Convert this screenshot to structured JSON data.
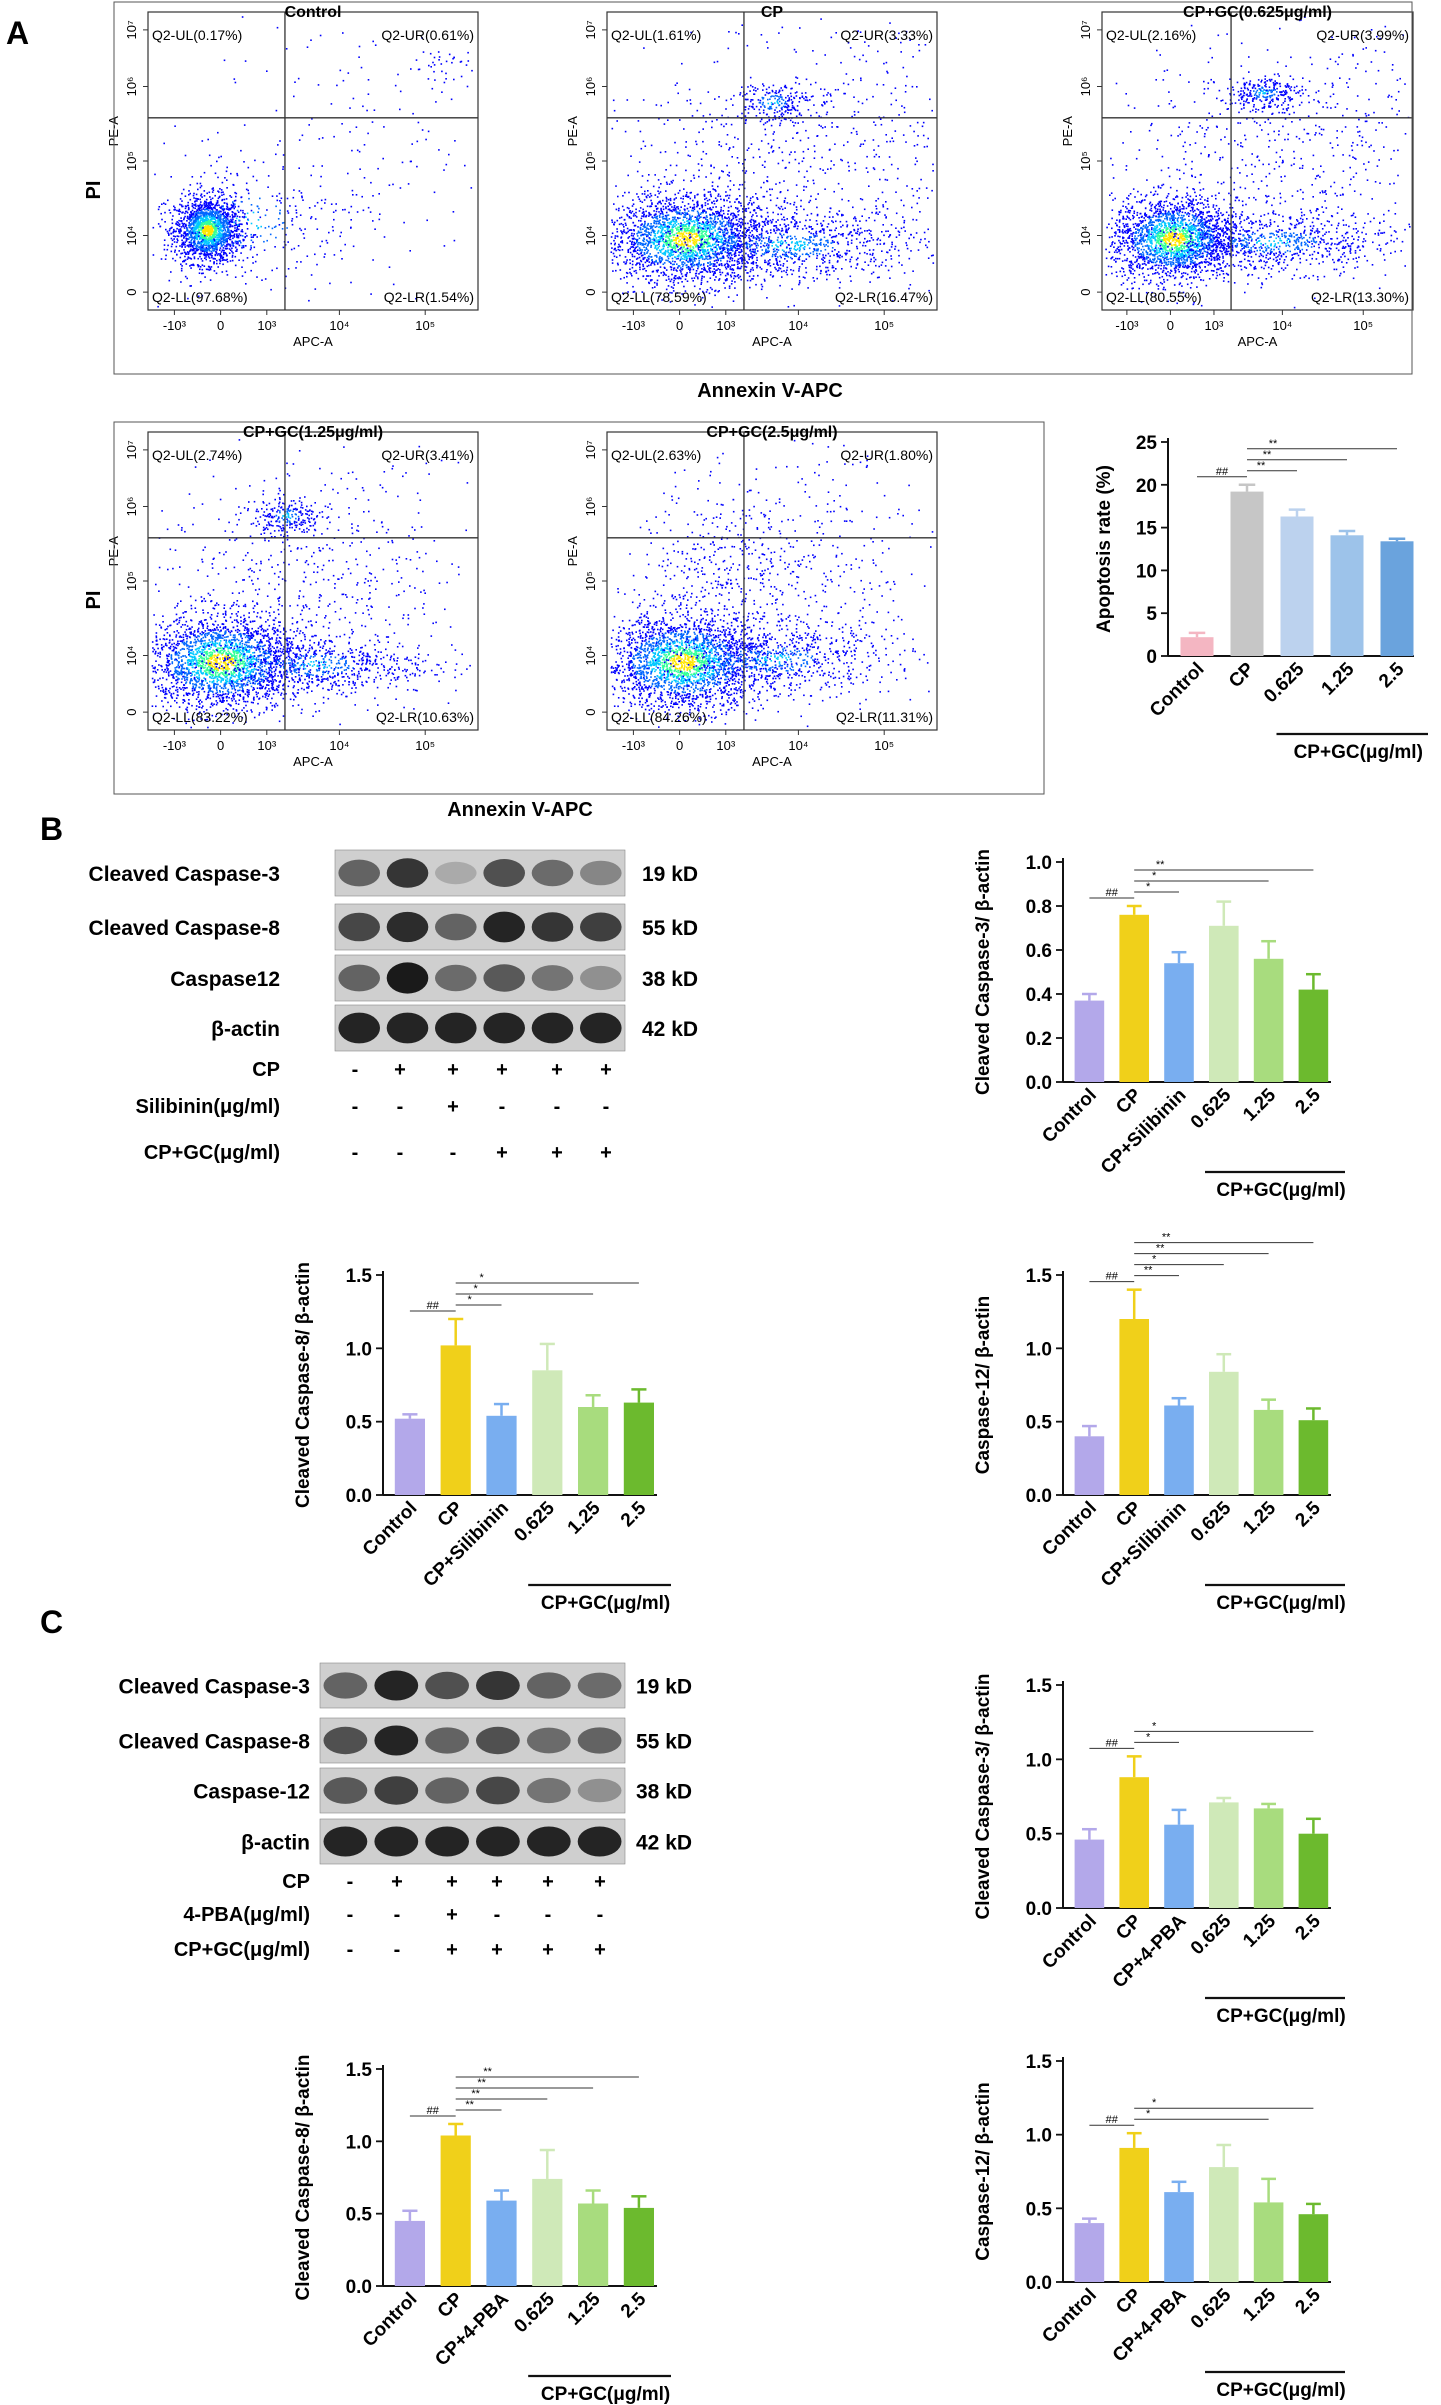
{
  "panels": {
    "A": "A",
    "B": "B",
    "C": "C"
  },
  "flow": {
    "plots": [
      {
        "title": "Control",
        "quads": {
          "ul": "Q2-UL(0.17%)",
          "ur": "Q2-UR(0.61%)",
          "ll": "Q2-LL(97.68%)",
          "lr": "Q2-LR(1.54%)"
        },
        "clusters": [
          [
            0.18,
            0.27,
            0.05,
            0.055,
            1700,
            1
          ],
          [
            0.3,
            0.3,
            0.18,
            0.12,
            320,
            0.55
          ],
          [
            0.62,
            0.55,
            0.22,
            0.22,
            150,
            0.3
          ],
          [
            0.88,
            0.82,
            0.05,
            0.04,
            40,
            0.3
          ]
        ]
      },
      {
        "title": "CP",
        "quads": {
          "ul": "Q2-UL(1.61%)",
          "ur": "Q2-UR(3.33%)",
          "ll": "Q2-LL(78.59%)",
          "lr": "Q2-LR(16.47%)"
        },
        "clusters": [
          [
            0.24,
            0.24,
            0.12,
            0.075,
            2200,
            1
          ],
          [
            0.55,
            0.22,
            0.2,
            0.06,
            900,
            0.6
          ],
          [
            0.5,
            0.7,
            0.06,
            0.035,
            220,
            0.55
          ],
          [
            0.45,
            0.48,
            0.3,
            0.2,
            500,
            0.3
          ],
          [
            0.8,
            0.6,
            0.18,
            0.25,
            250,
            0.25
          ]
        ]
      },
      {
        "title": "CP+GC(0.625μg/ml)",
        "quads": {
          "ul": "Q2-UL(2.16%)",
          "ur": "Q2-UR(3.99%)",
          "ll": "Q2-LL(80.55%)",
          "lr": "Q2-LR(13.30%)"
        },
        "clusters": [
          [
            0.23,
            0.24,
            0.1,
            0.07,
            2000,
            1
          ],
          [
            0.55,
            0.23,
            0.2,
            0.05,
            800,
            0.6
          ],
          [
            0.52,
            0.73,
            0.06,
            0.03,
            260,
            0.6
          ],
          [
            0.42,
            0.48,
            0.25,
            0.2,
            400,
            0.3
          ],
          [
            0.8,
            0.6,
            0.15,
            0.2,
            200,
            0.25
          ]
        ]
      },
      {
        "title": "CP+GC(1.25μg/ml)",
        "quads": {
          "ul": "Q2-UL(2.74%)",
          "ur": "Q2-UR(3.41%)",
          "ll": "Q2-LL(83.22%)",
          "lr": "Q2-LR(10.63%)"
        },
        "clusters": [
          [
            0.22,
            0.23,
            0.12,
            0.08,
            2300,
            1
          ],
          [
            0.5,
            0.22,
            0.18,
            0.05,
            700,
            0.6
          ],
          [
            0.42,
            0.72,
            0.05,
            0.035,
            220,
            0.55
          ],
          [
            0.42,
            0.48,
            0.22,
            0.2,
            400,
            0.3
          ],
          [
            0.7,
            0.55,
            0.15,
            0.2,
            120,
            0.2
          ]
        ]
      },
      {
        "title": "CP+GC(2.5μg/ml)",
        "quads": {
          "ul": "Q2-UL(2.63%)",
          "ur": "Q2-UR(1.80%)",
          "ll": "Q2-LL(84.26%)",
          "lr": "Q2-LR(11.31%)"
        },
        "clusters": [
          [
            0.23,
            0.23,
            0.12,
            0.08,
            2300,
            1
          ],
          [
            0.5,
            0.24,
            0.18,
            0.06,
            700,
            0.6
          ],
          [
            0.35,
            0.6,
            0.1,
            0.12,
            200,
            0.5
          ],
          [
            0.5,
            0.48,
            0.2,
            0.2,
            350,
            0.3
          ],
          [
            0.7,
            0.55,
            0.15,
            0.2,
            100,
            0.2
          ]
        ]
      }
    ],
    "x_axis_label": "APC-A",
    "y_axis_label": "PE-A",
    "x_ticks": [
      "-10³",
      "0",
      "10³",
      "10⁴",
      "10⁵"
    ],
    "y_ticks": [
      "0",
      "10⁴",
      "10⁵",
      "10⁶",
      "10⁷"
    ],
    "row_xlabel": "Annexin V-APC",
    "row_ylabel": "PI"
  },
  "blots": [
    {
      "rows": [
        {
          "label": "Cleaved Caspase-3",
          "size": "19 kD",
          "bands": [
            0.6,
            0.85,
            0.2,
            0.7,
            0.55,
            0.4
          ]
        },
        {
          "label": "Cleaved Caspase-8",
          "size": "55 kD",
          "bands": [
            0.75,
            0.9,
            0.6,
            0.95,
            0.85,
            0.8
          ]
        },
        {
          "label": "Caspase12",
          "size": "38 kD",
          "bands": [
            0.6,
            1.0,
            0.55,
            0.65,
            0.5,
            0.35
          ]
        },
        {
          "label": "β-actin",
          "size": "42 kD",
          "bands": [
            0.95,
            0.95,
            0.95,
            0.95,
            0.95,
            0.95
          ]
        }
      ],
      "treatments": [
        {
          "label": "CP",
          "signs": [
            "-",
            "+",
            "+",
            "+",
            "+",
            "+"
          ]
        },
        {
          "label": "Silibinin(μg/ml)",
          "signs": [
            "-",
            "-",
            "+",
            "-",
            "-",
            "-"
          ]
        },
        {
          "label": "CP+GC(μg/ml)",
          "signs": [
            "-",
            "-",
            "-",
            "+",
            "+",
            "+"
          ]
        }
      ]
    },
    {
      "rows": [
        {
          "label": "Cleaved Caspase-3",
          "size": "19 kD",
          "bands": [
            0.6,
            0.95,
            0.7,
            0.85,
            0.6,
            0.55
          ]
        },
        {
          "label": "Cleaved Caspase-8",
          "size": "55 kD",
          "bands": [
            0.7,
            0.95,
            0.6,
            0.7,
            0.55,
            0.6
          ]
        },
        {
          "label": "Caspase-12",
          "size": "38 kD",
          "bands": [
            0.65,
            0.8,
            0.6,
            0.75,
            0.5,
            0.35
          ]
        },
        {
          "label": "β-actin",
          "size": "42 kD",
          "bands": [
            0.95,
            0.95,
            0.95,
            0.95,
            0.95,
            0.95
          ]
        }
      ],
      "treatments": [
        {
          "label": "CP",
          "signs": [
            "-",
            "+",
            "+",
            "+",
            "+",
            "+"
          ]
        },
        {
          "label": "4-PBA(μg/ml)",
          "signs": [
            "-",
            "-",
            "+",
            "-",
            "-",
            "-"
          ]
        },
        {
          "label": "CP+GC(μg/ml)",
          "signs": [
            "-",
            "-",
            "+",
            "+",
            "+",
            "+"
          ]
        }
      ]
    }
  ],
  "colors": {
    "apoptosis": [
      "#f4b6c2",
      "#c6c6c6",
      "#bcd2ee",
      "#9dc3ea",
      "#6aa3dd"
    ],
    "caspase": [
      "#b3a8ea",
      "#f0d01a",
      "#79aef0",
      "#cfe9b8",
      "#a8dc7e",
      "#6cba2e"
    ]
  },
  "chart_data": [
    {
      "type": "bar",
      "ylabel": "Apoptosis rate (%)",
      "categories": [
        "Control",
        "CP",
        "0.625",
        "1.25",
        "2.5"
      ],
      "values": [
        2.2,
        19.2,
        16.3,
        14.1,
        13.4
      ],
      "errors": [
        0.5,
        0.8,
        0.8,
        0.5,
        0.3
      ],
      "ylim": [
        0,
        25
      ],
      "yticks": [
        "0",
        "5",
        "10",
        "15",
        "20",
        "25"
      ],
      "group_label": "CP+GC(μg/ml)",
      "group_from": 2,
      "sig": [
        {
          "from": 0,
          "to": 1,
          "label": "##"
        },
        {
          "from": 1,
          "to": 2,
          "label": "**"
        },
        {
          "from": 1,
          "to": 3,
          "label": "**"
        },
        {
          "from": 1,
          "to": 4,
          "label": "**"
        }
      ]
    },
    {
      "type": "bar",
      "ylabel": "Cleaved Caspase-3/ β-actin",
      "categories": [
        "Control",
        "CP",
        "CP+Silibinin",
        "0.625",
        "1.25",
        "2.5"
      ],
      "values": [
        0.37,
        0.76,
        0.54,
        0.71,
        0.56,
        0.42
      ],
      "errors": [
        0.03,
        0.04,
        0.05,
        0.11,
        0.08,
        0.07
      ],
      "ylim": [
        0,
        1.0
      ],
      "yticks": [
        "0.0",
        "0.2",
        "0.4",
        "0.6",
        "0.8",
        "1.0"
      ],
      "group_label": "CP+GC(μg/ml)",
      "group_from": 3,
      "sig": [
        {
          "from": 0,
          "to": 1,
          "label": "##"
        },
        {
          "from": 1,
          "to": 2,
          "label": "*"
        },
        {
          "from": 1,
          "to": 4,
          "label": "*"
        },
        {
          "from": 1,
          "to": 5,
          "label": "**"
        }
      ]
    },
    {
      "type": "bar",
      "ylabel": "Cleaved Caspase-8/ β-actin",
      "categories": [
        "Control",
        "CP",
        "CP+Silibinin",
        "0.625",
        "1.25",
        "2.5"
      ],
      "values": [
        0.52,
        1.02,
        0.54,
        0.85,
        0.6,
        0.63
      ],
      "errors": [
        0.03,
        0.18,
        0.08,
        0.18,
        0.08,
        0.09
      ],
      "ylim": [
        0,
        1.5
      ],
      "yticks": [
        "0.0",
        "0.5",
        "1.0",
        "1.5"
      ],
      "group_label": "CP+GC(μg/ml)",
      "group_from": 3,
      "sig": [
        {
          "from": 0,
          "to": 1,
          "label": "##"
        },
        {
          "from": 1,
          "to": 2,
          "label": "*"
        },
        {
          "from": 1,
          "to": 4,
          "label": "*"
        },
        {
          "from": 1,
          "to": 5,
          "label": "*"
        }
      ]
    },
    {
      "type": "bar",
      "ylabel": "Caspase-12/ β-actin",
      "categories": [
        "Control",
        "CP",
        "CP+Silibinin",
        "0.625",
        "1.25",
        "2.5"
      ],
      "values": [
        0.4,
        1.2,
        0.61,
        0.84,
        0.58,
        0.51
      ],
      "errors": [
        0.07,
        0.2,
        0.05,
        0.12,
        0.07,
        0.08
      ],
      "ylim": [
        0,
        1.5
      ],
      "yticks": [
        "0.0",
        "0.5",
        "1.0",
        "1.5"
      ],
      "group_label": "CP+GC(μg/ml)",
      "group_from": 3,
      "sig": [
        {
          "from": 0,
          "to": 1,
          "label": "##"
        },
        {
          "from": 1,
          "to": 2,
          "label": "**"
        },
        {
          "from": 1,
          "to": 3,
          "label": "*"
        },
        {
          "from": 1,
          "to": 4,
          "label": "**"
        },
        {
          "from": 1,
          "to": 5,
          "label": "**"
        }
      ]
    },
    {
      "type": "bar",
      "ylabel": "Cleaved Caspase-3/ β-actin",
      "categories": [
        "Control",
        "CP",
        "CP+4-PBA",
        "0.625",
        "1.25",
        "2.5"
      ],
      "values": [
        0.46,
        0.88,
        0.56,
        0.71,
        0.67,
        0.5
      ],
      "errors": [
        0.07,
        0.14,
        0.1,
        0.03,
        0.03,
        0.1
      ],
      "ylim": [
        0,
        1.5
      ],
      "yticks": [
        "0.0",
        "0.5",
        "1.0",
        "1.5"
      ],
      "group_label": "CP+GC(μg/ml)",
      "group_from": 3,
      "sig": [
        {
          "from": 0,
          "to": 1,
          "label": "##"
        },
        {
          "from": 1,
          "to": 2,
          "label": "*"
        },
        {
          "from": 1,
          "to": 5,
          "label": "*"
        }
      ]
    },
    {
      "type": "bar",
      "ylabel": "Cleaved Caspase-8/ β-actin",
      "categories": [
        "Control",
        "CP",
        "CP+4-PBA",
        "0.625",
        "1.25",
        "2.5"
      ],
      "values": [
        0.45,
        1.04,
        0.59,
        0.74,
        0.57,
        0.54
      ],
      "errors": [
        0.07,
        0.08,
        0.07,
        0.2,
        0.09,
        0.08
      ],
      "ylim": [
        0,
        1.5
      ],
      "yticks": [
        "0.0",
        "0.5",
        "1.0",
        "1.5"
      ],
      "group_label": "CP+GC(μg/ml)",
      "group_from": 3,
      "sig": [
        {
          "from": 0,
          "to": 1,
          "label": "##"
        },
        {
          "from": 1,
          "to": 2,
          "label": "**"
        },
        {
          "from": 1,
          "to": 3,
          "label": "**"
        },
        {
          "from": 1,
          "to": 4,
          "label": "**"
        },
        {
          "from": 1,
          "to": 5,
          "label": "**"
        }
      ]
    },
    {
      "type": "bar",
      "ylabel": "Caspase-12/ β-actin",
      "categories": [
        "Control",
        "CP",
        "CP+4-PBA",
        "0.625",
        "1.25",
        "2.5"
      ],
      "values": [
        0.4,
        0.91,
        0.61,
        0.78,
        0.54,
        0.46
      ],
      "errors": [
        0.03,
        0.1,
        0.07,
        0.15,
        0.16,
        0.07
      ],
      "ylim": [
        0,
        1.5
      ],
      "yticks": [
        "0.0",
        "0.5",
        "1.0",
        "1.5"
      ],
      "group_label": "CP+GC(μg/ml)",
      "group_from": 3,
      "sig": [
        {
          "from": 0,
          "to": 1,
          "label": "##"
        },
        {
          "from": 1,
          "to": 4,
          "label": "*"
        },
        {
          "from": 1,
          "to": 5,
          "label": "*"
        }
      ]
    }
  ]
}
